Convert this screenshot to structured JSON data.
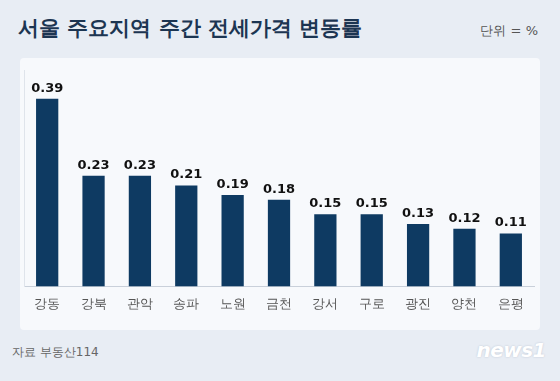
{
  "chart_data": {
    "type": "bar",
    "title": "서울 주요지역 주간 전세가격 변동률",
    "unit": "단위 = %",
    "source": "자료 부동산114",
    "watermark": "news1",
    "categories": [
      "강동",
      "강북",
      "관악",
      "송파",
      "노원",
      "금천",
      "강서",
      "구로",
      "광진",
      "양천",
      "은평"
    ],
    "values": [
      0.39,
      0.23,
      0.23,
      0.21,
      0.19,
      0.18,
      0.15,
      0.15,
      0.13,
      0.12,
      0.11
    ],
    "color": "#0e3a62",
    "ylim": [
      0,
      0.45
    ],
    "grid": false,
    "data_labels": true,
    "tick_labels": "x"
  }
}
